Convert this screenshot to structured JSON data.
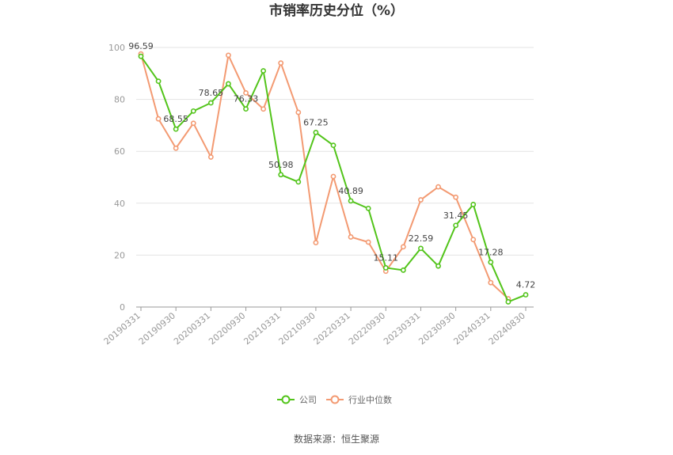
{
  "chart_data": {
    "type": "line",
    "title": "市销率历史分位（%）",
    "xlabel": "",
    "ylabel": "",
    "ylim": [
      0,
      100
    ],
    "yticks": [
      0,
      20,
      40,
      60,
      80,
      100
    ],
    "grid": true,
    "legend_position": "bottom-center",
    "x": [
      "20190331",
      "20190630",
      "20190930",
      "20191231",
      "20200331",
      "20200630",
      "20200930",
      "20201231",
      "20210331",
      "20210630",
      "20210930",
      "20211231",
      "20220331",
      "20220630",
      "20220930",
      "20221231",
      "20230331",
      "20230630",
      "20230930",
      "20231231",
      "20240331",
      "20240630",
      "20240830"
    ],
    "x_tick_labels": [
      "20190331",
      "20190930",
      "20200331",
      "20200930",
      "20210331",
      "20210930",
      "20220331",
      "20220930",
      "20230331",
      "20230930",
      "20240331",
      "20240830"
    ],
    "series": [
      {
        "name": "公司",
        "color": "#52c41a",
        "values": [
          96.59,
          87,
          68.55,
          75.5,
          78.65,
          86,
          76.33,
          91,
          50.98,
          48.2,
          67.25,
          62.3,
          40.89,
          38,
          15.11,
          14.2,
          22.59,
          15.8,
          31.45,
          39.5,
          17.28,
          2,
          4.72
        ],
        "labels": {
          "0": "96.59",
          "2": "68.55",
          "4": "78.65",
          "6": "76.33",
          "8": "50.98",
          "10": "67.25",
          "12": "40.89",
          "14": "15.11",
          "16": "22.59",
          "18": "31.45",
          "20": "17.28",
          "22": "4.72"
        }
      },
      {
        "name": "行业中位数",
        "color": "#f39a72",
        "values": [
          97.5,
          72.5,
          61.2,
          70.8,
          57.8,
          97,
          82.5,
          76.3,
          94,
          75,
          24.8,
          50.3,
          27,
          25,
          13.8,
          23.2,
          41.3,
          46.3,
          42.3,
          26,
          9.4,
          3.2,
          null
        ]
      }
    ]
  },
  "source_text": "数据来源：恒生聚源"
}
